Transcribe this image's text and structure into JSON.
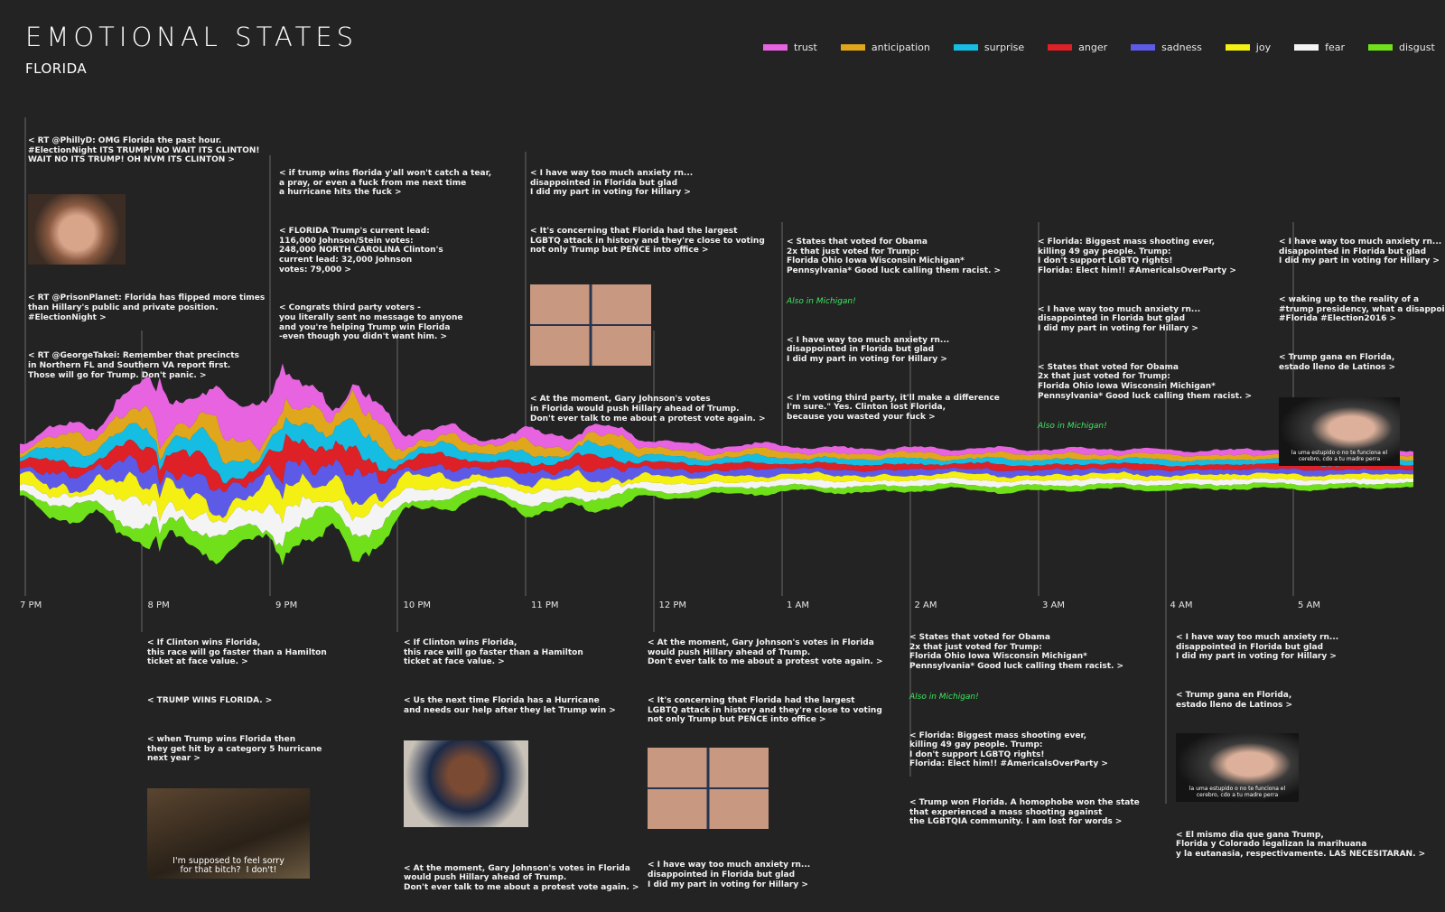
{
  "header": {
    "title": "EMOTIONAL STATES",
    "state": "FLORIDA"
  },
  "legend": [
    {
      "name": "trust",
      "color": "#e763e0"
    },
    {
      "name": "anticipation",
      "color": "#e0a71c"
    },
    {
      "name": "surprise",
      "color": "#16bde3"
    },
    {
      "name": "anger",
      "color": "#de2027"
    },
    {
      "name": "sadness",
      "color": "#5e5ae8"
    },
    {
      "name": "joy",
      "color": "#f4f013"
    },
    {
      "name": "fear",
      "color": "#f4f4f4"
    },
    {
      "name": "disgust",
      "color": "#6fe01a"
    }
  ],
  "chart_data": {
    "type": "area",
    "subtype": "streamgraph",
    "x_axis": [
      "7 PM",
      "8 PM",
      "9 PM",
      "10 PM",
      "11 PM",
      "12 PM",
      "1 AM",
      "2 AM",
      "3 AM",
      "4 AM",
      "5 AM"
    ],
    "series": [
      {
        "name": "trust",
        "color": "#e763e0"
      },
      {
        "name": "anticipation",
        "color": "#e0a71c"
      },
      {
        "name": "surprise",
        "color": "#16bde3"
      },
      {
        "name": "anger",
        "color": "#de2027"
      },
      {
        "name": "sadness",
        "color": "#5e5ae8"
      },
      {
        "name": "joy",
        "color": "#f4f013"
      },
      {
        "name": "fear",
        "color": "#f4f4f4"
      },
      {
        "name": "disgust",
        "color": "#6fe01a"
      }
    ],
    "activity_profile": [
      0.25,
      0.55,
      1.0,
      0.75,
      0.95,
      1.0,
      0.45,
      0.25,
      0.45,
      0.35,
      0.18,
      0.15,
      0.13,
      0.12,
      0.1,
      0.11,
      0.1,
      0.09,
      0.08,
      0.09,
      0.07,
      0.05
    ],
    "grid": false,
    "legend_position": "top-right"
  },
  "tweets_top": [
    {
      "lines": [
        "< RT @PhillyD: OMG Florida the past hour.\n#ElectionNight ITS TRUMP! NO WAIT ITS CLINTON!\nWAIT NO ITS TRUMP! OH NVM ITS CLINTON >",
        "[gif]",
        "< RT @PrisonPlanet: Florida has flipped more times\nthan Hillary's public and private position.\n#ElectionNight >",
        "< RT @GeorgeTakei: Remember that precincts\nin Northern FL and Southern VA report first.\nThose will go for Trump. Don't panic. >"
      ]
    },
    {
      "lines": [
        "< if trump wins florida y'all won't catch a tear,\na pray, or even a fuck from me next time\na hurricane hits the fuck >",
        "< FLORIDA Trump's current lead:\n116,000 Johnson/Stein votes:\n248,000 NORTH CAROLINA Clinton's\ncurrent lead: 32,000 Johnson\nvotes: 79,000 >",
        "< Congrats third party voters -\nyou literally sent no message to anyone\nand you're helping Trump win Florida\n-even though you didn't want him. >"
      ]
    },
    {
      "lines": [
        "< I have way too much anxiety rn...\ndisappointed in Florida but glad\nI did my part in voting for Hillary >",
        "< It's concerning that Florida had the largest\nLGBTQ attack in history and they're close to voting\nnot only Trump but PENCE into office >",
        "[gif]",
        "< At the moment, Gary Johnson's votes\nin Florida would push Hillary ahead of Trump.\nDon't ever talk to me about a protest vote again. >"
      ]
    },
    {
      "lines": [
        "< States that voted for Obama\n2x that just voted for Trump:\nFlorida Ohio Iowa Wisconsin Michigan*\nPennsylvania* Good luck calling them racist. >",
        "Also in Michigan!",
        "< I have way too much anxiety rn...\ndisappointed in Florida but glad\nI did my part in voting for Hillary >",
        "< I'm voting third party, it'll make a difference\nI'm sure.\" Yes. Clinton lost Florida,\nbecause you wasted your fuck >"
      ]
    },
    {
      "lines": [
        "< Florida: Biggest mass shooting ever,\nkilling 49 gay people. Trump:\nI don't support LGBTQ rights!\nFlorida: Elect him!! #AmericaIsOverParty >",
        "< I have way too much anxiety rn...\ndisappointed in Florida but glad\nI did my part in voting for Hillary >",
        "< States that voted for Obama\n2x that just voted for Trump:\nFlorida Ohio Iowa Wisconsin Michigan*\nPennsylvania* Good luck calling them racist. >",
        "Also in Michigan!"
      ]
    },
    {
      "lines": [
        "< I have way too much anxiety rn...\ndisappointed in Florida but glad\nI did my part in voting for Hillary >",
        "< waking up to the reality of a\n#trump presidency, what a disappoi\n#Florida #Election2016 >",
        "< Trump gana en Florida,\nestado lleno de Latinos >",
        "[gif]"
      ]
    }
  ],
  "tweets_bottom": [
    {
      "lines": [
        "< If Clinton wins Florida,\nthis race will go faster than a Hamilton\nticket at face value. >",
        "< TRUMP WINS FLORIDA. >",
        "< when Trump wins Florida then\nthey get hit by a category 5 hurricane\nnext year >",
        "[gif]"
      ]
    },
    {
      "lines": [
        "< If Clinton wins Florida,\nthis race will go faster than a Hamilton\nticket at face value. >",
        "< Us the next time Florida has a Hurricane\nand needs our help after they let Trump win >",
        "[gif]",
        "< At the moment, Gary Johnson's votes in Florida\nwould push Hillary ahead of Trump.\nDon't ever talk to me about a protest vote again. >"
      ]
    },
    {
      "lines": [
        "< At the moment, Gary Johnson's votes in Florida\nwould push Hillary ahead of Trump.\nDon't ever talk to me about a protest vote again. >",
        "< It's concerning that Florida had the largest\nLGBTQ attack in history and they're close to voting\nnot only Trump but PENCE into office >",
        "[gif]",
        "< I have way too much anxiety rn...\ndisappointed in Florida but glad\nI did my part in voting for Hillary >"
      ]
    },
    {
      "lines": [
        "< States that voted for Obama\n2x that just voted for Trump:\nFlorida Ohio Iowa Wisconsin Michigan*\nPennsylvania* Good luck calling them racist. >",
        "Also in Michigan!",
        "< Florida: Biggest mass shooting ever,\nkilling 49 gay people. Trump:\nI don't support LGBTQ rights!\nFlorida: Elect him!! #AmericaIsOverParty >",
        "< Trump won Florida. A homophobe won the state\nthat experienced a mass shooting against\nthe LGBTQIA community. I am lost for words >"
      ]
    },
    {
      "lines": [
        "< I have way too much anxiety rn...\ndisappointed in Florida but glad\nI did my part in voting for Hillary >",
        "< Trump gana en Florida,\nestado lleno de Latinos >",
        "[gif]",
        "< El mismo dia que gana Trump,\nFlorida y Colorado legalizan la marihuana\ny la eutanasia, respectivamente. LAS NECESITARAN. >"
      ]
    }
  ],
  "gif_captions": {
    "ohio": "I'm supposed to feel sorry\nfor that bitch?  I don't!",
    "crying_a": "la uma estupido o no te funciona el cerebro, cdo a tu madre perra",
    "crying_b": "la uma estupido o no te funciona el cerebro, cdo a tu madre perra"
  }
}
